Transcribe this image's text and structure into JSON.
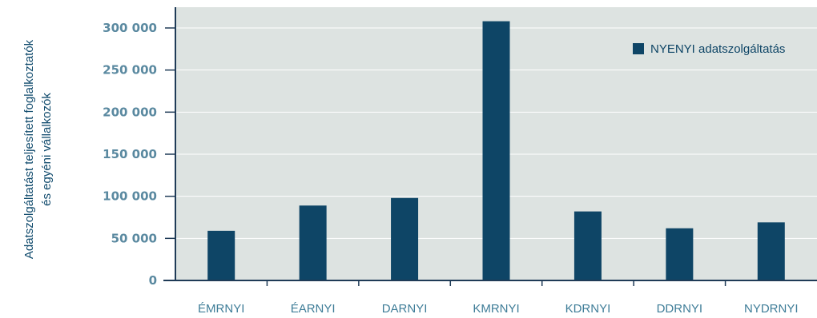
{
  "chart_data": {
    "type": "bar",
    "categories": [
      "ÉMRNYI",
      "ÉARNYI",
      "DARNYI",
      "KMRNYI",
      "KDRNYI",
      "DDRNYI",
      "NYDRNYI"
    ],
    "series": [
      {
        "name": "NYENYI adatszolgáltatás",
        "values": [
          59000,
          89000,
          98000,
          308000,
          82000,
          62000,
          69000
        ]
      }
    ],
    "ylabel": [
      "Adatszolgáltatást teljesített foglalkoztatók",
      "és egyéni vállalkozók"
    ],
    "ylim": [
      0,
      300000
    ],
    "yticks": [
      0,
      50000,
      100000,
      150000,
      200000,
      250000,
      300000
    ],
    "ytick_labels": [
      "0",
      "50 000",
      "100 000",
      "150 000",
      "200 000",
      "250 000",
      "300 000"
    ],
    "grid": true,
    "legend": "top-right",
    "colors": {
      "bar": "#0e4566",
      "plot_background": "#dde3e1",
      "axis": "#1f3b57",
      "ytick_text": "#5a89a0",
      "xtick_text": "#3f7d98"
    }
  }
}
